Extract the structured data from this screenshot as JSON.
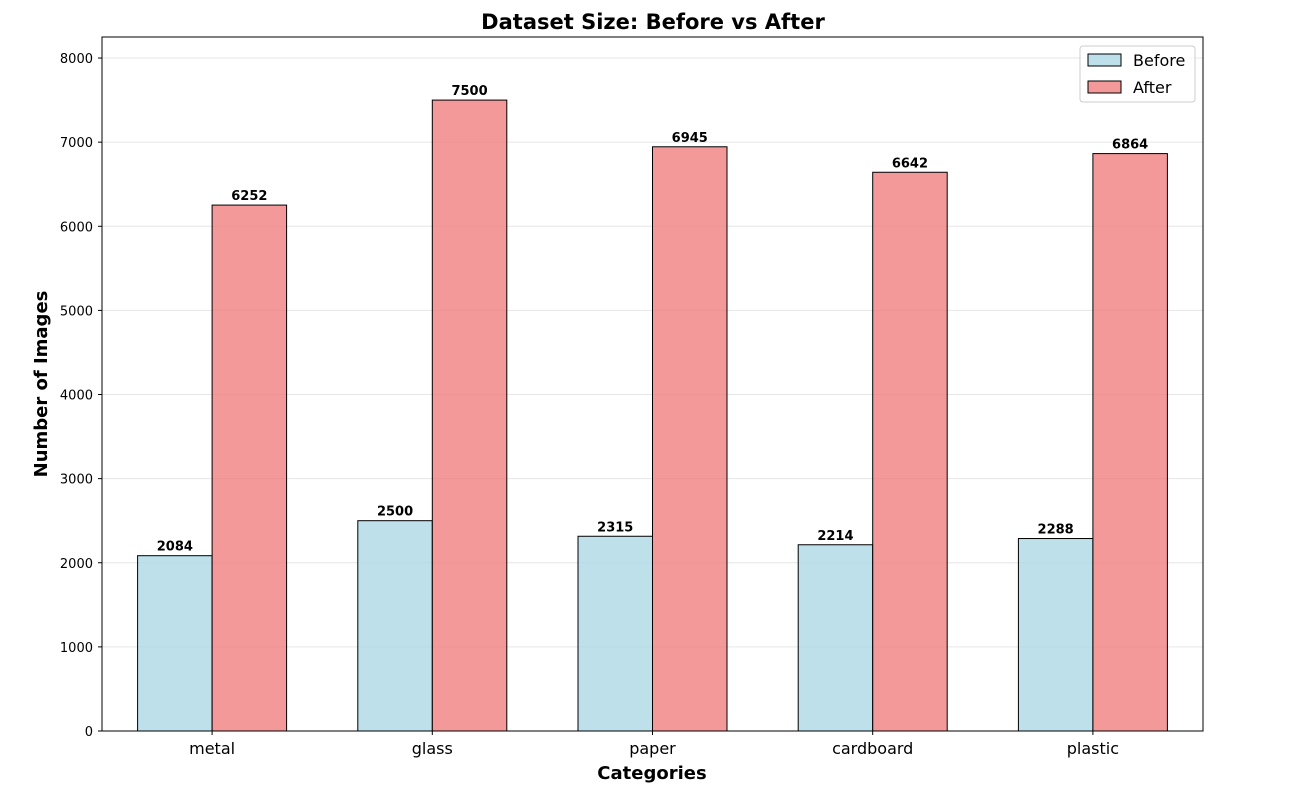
{
  "chart_data": {
    "type": "bar",
    "title": "Dataset Size: Before vs After",
    "xlabel": "Categories",
    "ylabel": "Number of Images",
    "categories": [
      "metal",
      "glass",
      "paper",
      "cardboard",
      "plastic"
    ],
    "series": [
      {
        "name": "Before",
        "values": [
          2084,
          2500,
          2315,
          2214,
          2288
        ],
        "color": "#add8e6"
      },
      {
        "name": "After",
        "values": [
          6252,
          7500,
          6945,
          6642,
          6864
        ],
        "color": "#f08080"
      }
    ],
    "ylim": [
      0,
      8250
    ],
    "yticks": [
      0,
      1000,
      2000,
      3000,
      4000,
      5000,
      6000,
      7000,
      8000
    ],
    "grid": true,
    "legend_position": "top-right"
  }
}
